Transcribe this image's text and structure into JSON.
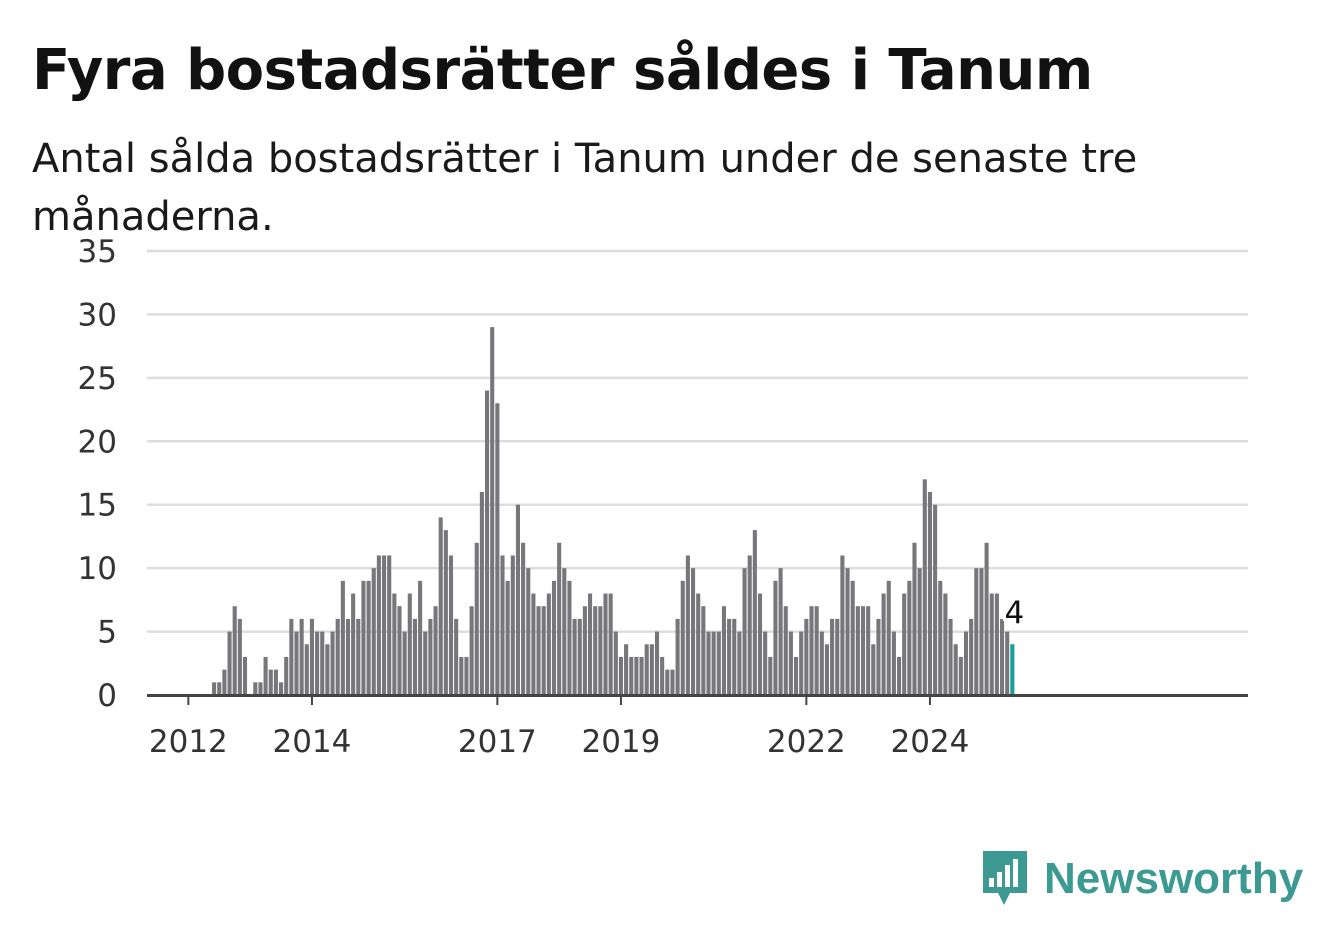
{
  "header": {
    "title": "Fyra bostadsrätter såldes i Tanum",
    "subtitle": "Antal sålda bostadsrätter i Tanum under de senaste tre månaderna."
  },
  "brand": {
    "name": "Newsworthy",
    "icon": "bar-chart-speech-bubble-icon",
    "color": "#3d9a92"
  },
  "colors": {
    "bar": "#77777b",
    "highlight": "#1a9e98",
    "grid": "#dddddd",
    "axis": "#444444"
  },
  "chart_data": {
    "type": "bar",
    "title": "Fyra bostadsrätter såldes i Tanum",
    "subtitle": "Antal sålda bostadsrätter i Tanum under de senaste tre månaderna.",
    "xlabel": "",
    "ylabel": "",
    "ylim": [
      0,
      35
    ],
    "yticks": [
      0,
      5,
      10,
      15,
      20,
      25,
      30,
      35
    ],
    "xticks": [
      "2012",
      "2014",
      "2017",
      "2019",
      "2022",
      "2024"
    ],
    "grid": true,
    "start_period": "2011-08",
    "period": "month",
    "values": [
      0,
      0,
      0,
      0,
      0,
      0,
      0,
      0,
      0,
      0,
      1,
      1,
      2,
      5,
      7,
      6,
      3,
      0,
      1,
      1,
      3,
      2,
      2,
      1,
      3,
      6,
      5,
      6,
      4,
      6,
      5,
      5,
      4,
      5,
      6,
      9,
      6,
      8,
      6,
      9,
      9,
      10,
      11,
      11,
      11,
      8,
      7,
      5,
      8,
      6,
      9,
      5,
      6,
      7,
      14,
      13,
      11,
      6,
      3,
      3,
      7,
      12,
      16,
      24,
      29,
      23,
      11,
      9,
      11,
      15,
      12,
      10,
      8,
      7,
      7,
      8,
      9,
      12,
      10,
      9,
      6,
      6,
      7,
      8,
      7,
      7,
      8,
      8,
      5,
      3,
      4,
      3,
      3,
      3,
      4,
      4,
      5,
      3,
      2,
      2,
      6,
      9,
      11,
      10,
      8,
      7,
      5,
      5,
      5,
      7,
      6,
      6,
      5,
      10,
      11,
      13,
      8,
      5,
      3,
      9,
      10,
      7,
      5,
      3,
      5,
      6,
      7,
      7,
      5,
      4,
      6,
      6,
      11,
      10,
      9,
      7,
      7,
      7,
      4,
      6,
      8,
      9,
      5,
      3,
      8,
      9,
      12,
      10,
      17,
      16,
      15,
      9,
      8,
      6,
      4,
      3,
      5,
      6,
      10,
      10,
      12,
      8,
      8,
      6,
      5,
      4
    ],
    "highlight_last": true,
    "highlight_label": "4"
  }
}
